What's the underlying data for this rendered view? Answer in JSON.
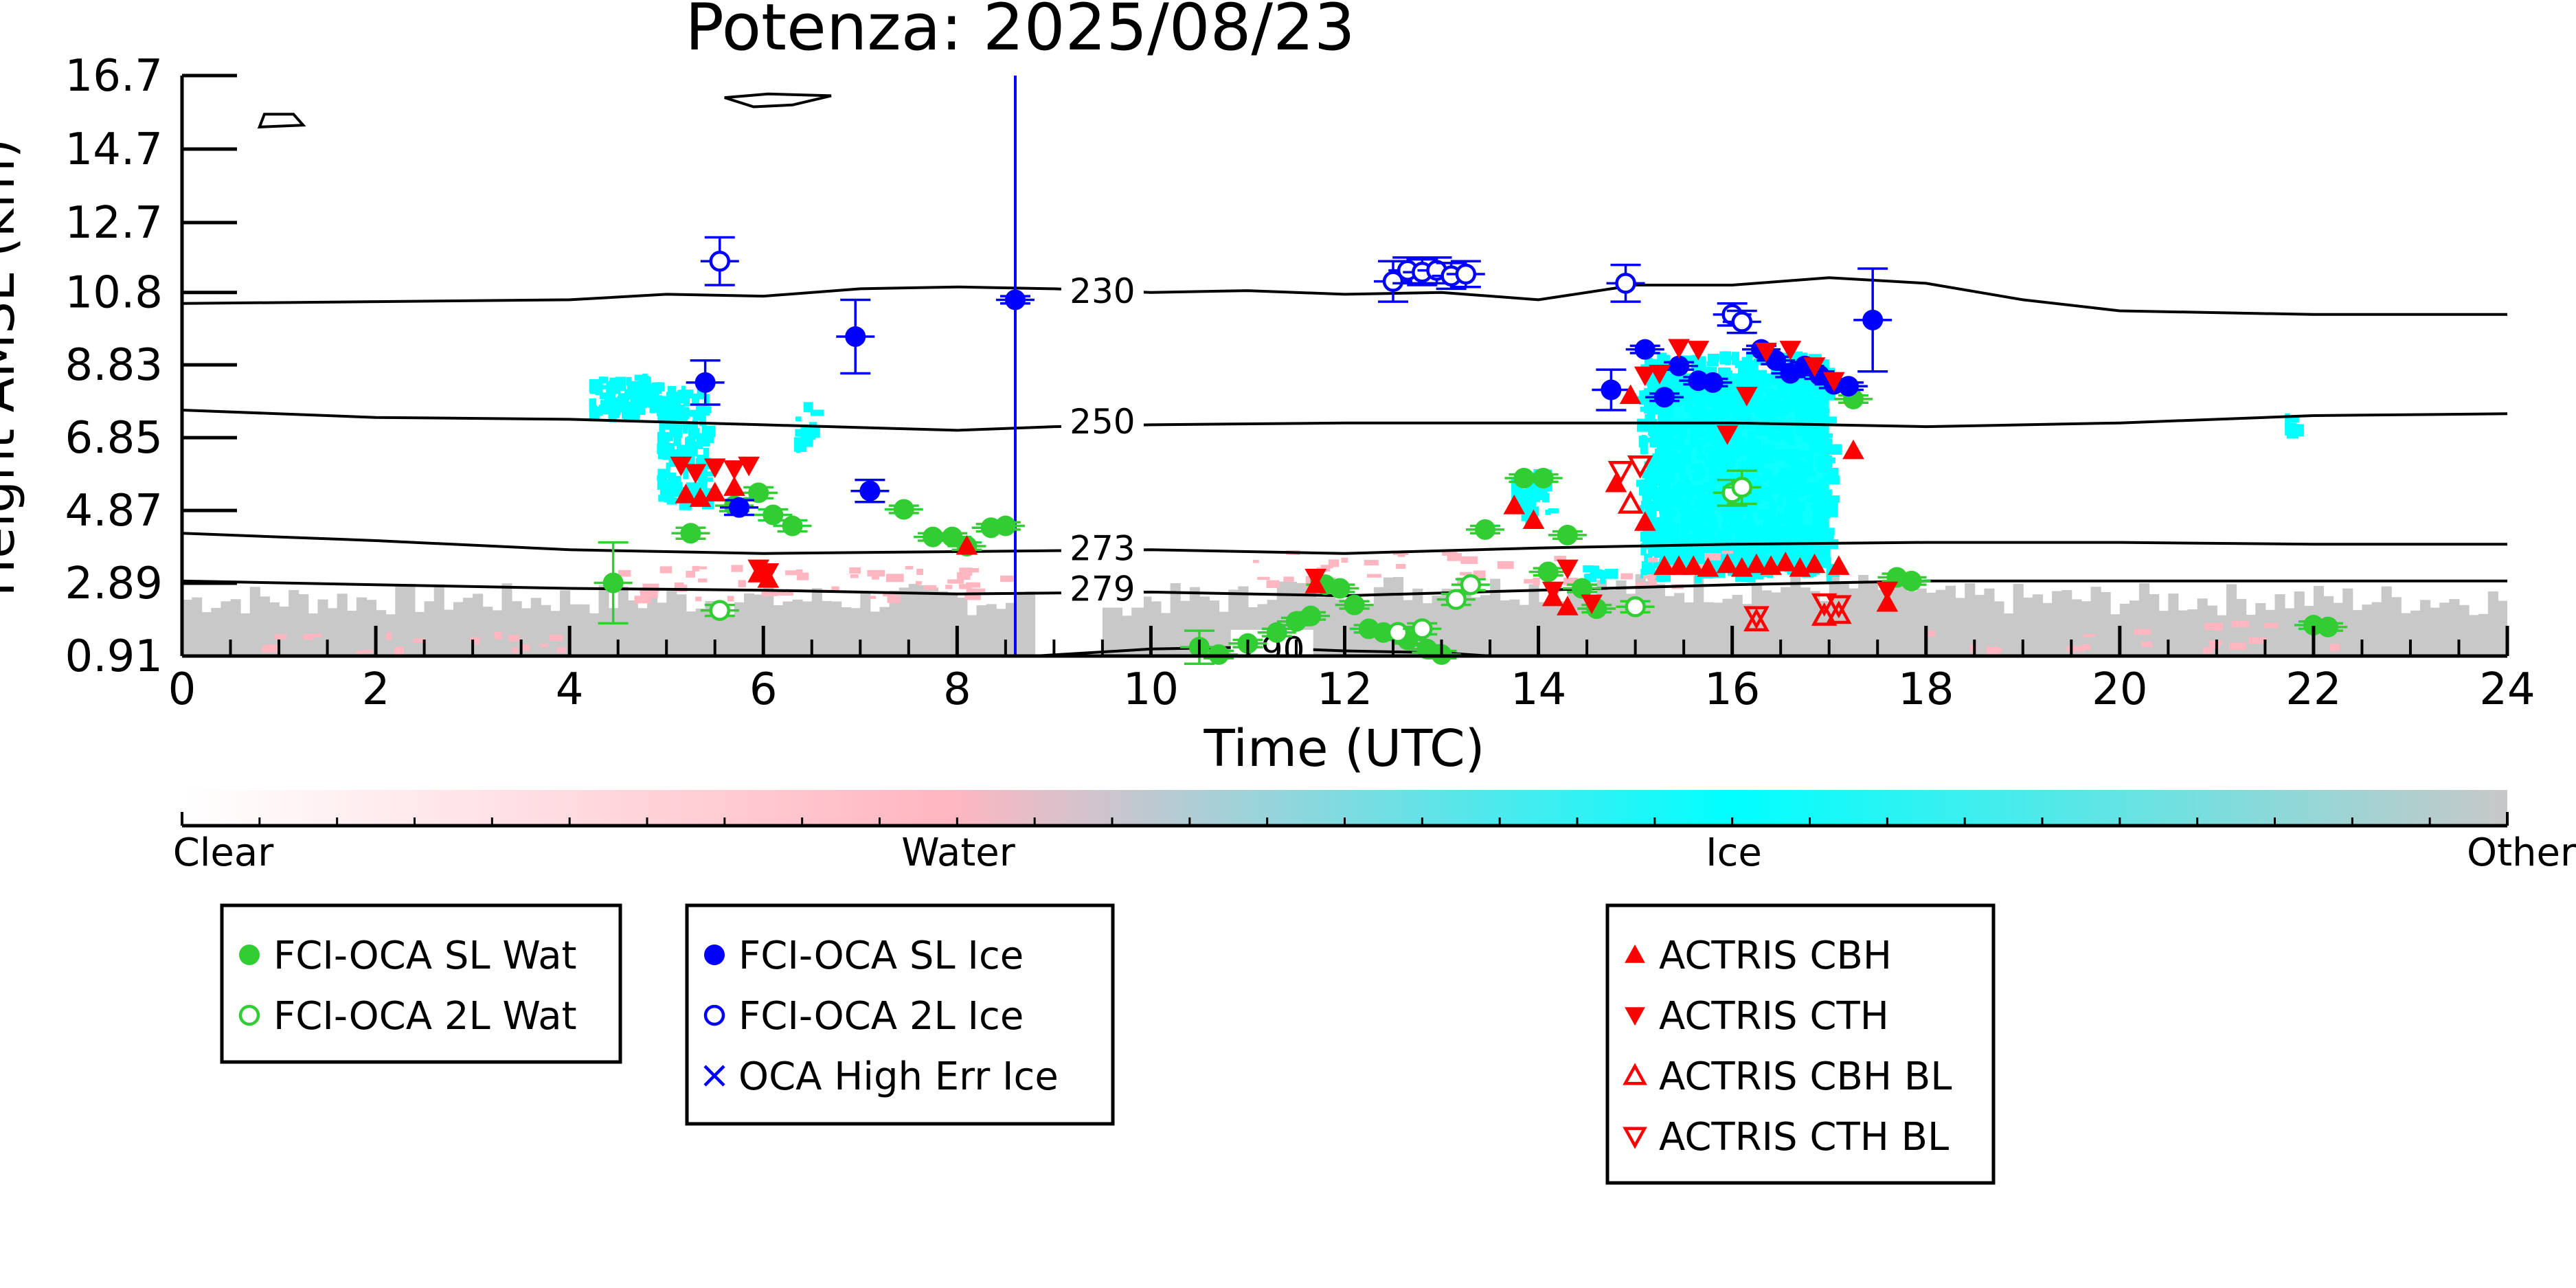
{
  "chart_data": {
    "type": "scatter",
    "title": "Potenza: 2025/08/23",
    "xlabel": "Time (UTC)",
    "ylabel": "Height AMSL (km)",
    "xlim": [
      0,
      24
    ],
    "ylim": [
      0.91,
      16.7
    ],
    "x_ticks": [
      "0",
      "2",
      "4",
      "6",
      "8",
      "10",
      "12",
      "14",
      "16",
      "18",
      "20",
      "22",
      "24"
    ],
    "y_ticks": [
      "0.91",
      "2.89",
      "4.87",
      "6.85",
      "8.83",
      "10.8",
      "12.7",
      "14.7",
      "16.7"
    ],
    "y_tick_values": [
      0.91,
      2.89,
      4.87,
      6.85,
      8.83,
      10.8,
      12.7,
      14.7,
      16.7
    ],
    "isotherms": [
      {
        "label": "230",
        "label_x": 9.5,
        "label_y": 10.85,
        "points": [
          [
            0,
            10.5
          ],
          [
            2,
            10.55
          ],
          [
            4,
            10.6
          ],
          [
            5,
            10.75
          ],
          [
            6,
            10.7
          ],
          [
            7,
            10.9
          ],
          [
            8,
            10.95
          ],
          [
            9,
            10.9
          ],
          [
            10,
            10.8
          ],
          [
            11,
            10.85
          ],
          [
            12,
            10.75
          ],
          [
            13,
            10.8
          ],
          [
            14,
            10.6
          ],
          [
            15,
            11.0
          ],
          [
            16,
            11.0
          ],
          [
            17,
            11.2
          ],
          [
            18,
            11.05
          ],
          [
            19,
            10.6
          ],
          [
            20,
            10.3
          ],
          [
            22,
            10.2
          ],
          [
            24,
            10.2
          ]
        ]
      },
      {
        "label": "250",
        "label_x": 9.5,
        "label_y": 7.3,
        "points": [
          [
            0,
            7.6
          ],
          [
            2,
            7.4
          ],
          [
            4,
            7.35
          ],
          [
            6,
            7.2
          ],
          [
            8,
            7.05
          ],
          [
            9,
            7.15
          ],
          [
            10,
            7.2
          ],
          [
            12,
            7.25
          ],
          [
            14,
            7.25
          ],
          [
            16,
            7.25
          ],
          [
            18,
            7.15
          ],
          [
            20,
            7.25
          ],
          [
            22,
            7.45
          ],
          [
            24,
            7.5
          ]
        ]
      },
      {
        "label": "273",
        "label_x": 9.5,
        "label_y": 3.85,
        "points": [
          [
            0,
            4.25
          ],
          [
            2,
            4.05
          ],
          [
            4,
            3.8
          ],
          [
            6,
            3.7
          ],
          [
            8,
            3.75
          ],
          [
            10,
            3.8
          ],
          [
            12,
            3.7
          ],
          [
            14,
            3.85
          ],
          [
            16,
            3.95
          ],
          [
            18,
            4.0
          ],
          [
            20,
            4.0
          ],
          [
            22,
            3.95
          ],
          [
            24,
            3.95
          ]
        ]
      },
      {
        "label": "279",
        "label_x": 9.5,
        "label_y": 2.75,
        "points": [
          [
            0,
            2.95
          ],
          [
            2,
            2.85
          ],
          [
            4,
            2.75
          ],
          [
            6,
            2.7
          ],
          [
            8,
            2.6
          ],
          [
            10,
            2.65
          ],
          [
            12,
            2.55
          ],
          [
            14,
            2.7
          ],
          [
            16,
            2.85
          ],
          [
            18,
            2.95
          ],
          [
            20,
            2.95
          ],
          [
            22,
            2.95
          ],
          [
            24,
            2.95
          ]
        ]
      },
      {
        "label": "290",
        "label_x": 11.25,
        "label_y": 1.1,
        "points": [
          [
            8.8,
            0.91
          ],
          [
            10,
            1.1
          ],
          [
            11,
            1.15
          ],
          [
            12,
            1.05
          ],
          [
            13,
            1.0
          ],
          [
            13.5,
            0.91
          ]
        ]
      }
    ],
    "contours": [
      {
        "points": [
          [
            0.85,
            15.65
          ],
          [
            1.15,
            15.65
          ],
          [
            1.25,
            15.35
          ],
          [
            0.8,
            15.3
          ],
          [
            0.85,
            15.65
          ]
        ]
      },
      {
        "points": [
          [
            5.6,
            16.1
          ],
          [
            6.05,
            16.2
          ],
          [
            6.7,
            16.15
          ],
          [
            6.3,
            15.9
          ],
          [
            5.9,
            15.85
          ],
          [
            5.6,
            16.1
          ]
        ]
      }
    ],
    "vertical_line": {
      "x": 8.6,
      "color": "#0000ff"
    },
    "colors": {
      "water_marker": "#32cd32",
      "ice_marker": "#0000ff",
      "actris_marker": "#ff0000",
      "background_other": "#c8c8c8",
      "ice_shading": "#00ffff",
      "water_shading": "#ffb6c1"
    },
    "series": [
      {
        "name": "FCI-OCA SL Wat",
        "marker": "circle-filled",
        "color": "#32cd32",
        "points": [
          [
            4.45,
            2.9,
            1.1
          ],
          [
            5.25,
            4.25,
            0.15
          ],
          [
            5.7,
            5.0,
            0.15
          ],
          [
            5.95,
            5.35,
            0.15
          ],
          [
            6.1,
            4.75,
            0.15
          ],
          [
            6.3,
            4.45,
            0.15
          ],
          [
            7.45,
            4.9,
            0.1
          ],
          [
            7.75,
            4.15,
            0.1
          ],
          [
            7.95,
            4.15,
            0.1
          ],
          [
            8.1,
            3.9,
            0.1
          ],
          [
            8.35,
            4.4,
            0.1
          ],
          [
            8.5,
            4.45,
            0.1
          ],
          [
            10.5,
            1.15,
            0.45
          ],
          [
            10.7,
            0.95,
            0.1
          ],
          [
            11.0,
            1.25,
            0.1
          ],
          [
            11.3,
            1.55,
            0.1
          ],
          [
            11.5,
            1.85,
            0.1
          ],
          [
            11.65,
            2.0,
            0.1
          ],
          [
            11.8,
            2.85,
            0.1
          ],
          [
            11.95,
            2.75,
            0.1
          ],
          [
            12.1,
            2.3,
            0.1
          ],
          [
            12.25,
            1.65,
            0.1
          ],
          [
            12.4,
            1.55,
            0.1
          ],
          [
            12.65,
            1.35,
            0.1
          ],
          [
            12.85,
            1.1,
            0.1
          ],
          [
            13.0,
            0.95,
            0.1
          ],
          [
            13.45,
            4.35,
            0.1
          ],
          [
            13.85,
            5.75,
            0.1
          ],
          [
            14.05,
            5.75,
            0.1
          ],
          [
            14.1,
            3.2,
            0.1
          ],
          [
            14.3,
            4.2,
            0.1
          ],
          [
            14.45,
            2.75,
            0.1
          ],
          [
            14.6,
            2.2,
            0.1
          ],
          [
            17.25,
            7.9,
            0.1
          ],
          [
            17.7,
            3.05,
            0.1
          ],
          [
            17.85,
            2.95,
            0.1
          ],
          [
            22.0,
            1.75,
            0.1
          ],
          [
            22.15,
            1.7,
            0.1
          ]
        ]
      },
      {
        "name": "FCI-OCA 2L Wat",
        "marker": "circle-open",
        "color": "#32cd32",
        "points": [
          [
            5.55,
            2.15,
            0.15
          ],
          [
            12.55,
            1.55,
            0.15
          ],
          [
            12.8,
            1.65,
            0.15
          ],
          [
            13.15,
            2.45,
            0.15
          ],
          [
            13.3,
            2.85,
            0.15
          ],
          [
            15.0,
            2.25,
            0.15
          ],
          [
            16.0,
            5.35,
            0.35
          ],
          [
            16.1,
            5.5,
            0.45
          ]
        ]
      },
      {
        "name": "FCI-OCA SL Ice",
        "marker": "circle-filled",
        "color": "#0000ff",
        "points": [
          [
            5.4,
            8.35,
            0.6
          ],
          [
            5.75,
            4.95,
            0.2
          ],
          [
            6.95,
            9.6,
            1.0
          ],
          [
            7.1,
            5.4,
            0.3
          ],
          [
            8.6,
            10.6,
            0.1
          ],
          [
            14.75,
            8.15,
            0.55
          ],
          [
            15.1,
            9.25,
            0.1
          ],
          [
            15.3,
            7.95,
            0.1
          ],
          [
            15.45,
            8.8,
            0.1
          ],
          [
            15.65,
            8.4,
            0.1
          ],
          [
            15.8,
            8.35,
            0.1
          ],
          [
            16.3,
            9.25,
            0.1
          ],
          [
            16.45,
            8.95,
            0.1
          ],
          [
            16.6,
            8.6,
            0.1
          ],
          [
            16.75,
            8.8,
            0.1
          ],
          [
            16.9,
            8.55,
            0.1
          ],
          [
            17.05,
            8.3,
            0.1
          ],
          [
            17.2,
            8.25,
            0.1
          ],
          [
            17.45,
            10.05,
            1.4
          ]
        ]
      },
      {
        "name": "FCI-OCA 2L Ice",
        "marker": "circle-open",
        "color": "#0000ff",
        "points": [
          [
            5.55,
            11.65,
            0.65
          ],
          [
            12.5,
            11.1,
            0.55
          ],
          [
            12.65,
            11.4,
            0.35
          ],
          [
            12.8,
            11.35,
            0.35
          ],
          [
            12.95,
            11.4,
            0.35
          ],
          [
            13.1,
            11.25,
            0.35
          ],
          [
            13.25,
            11.3,
            0.35
          ],
          [
            14.9,
            11.05,
            0.5
          ],
          [
            16.0,
            10.2,
            0.3
          ],
          [
            16.1,
            10.0,
            0.3
          ]
        ]
      },
      {
        "name": "OCA High Err Ice",
        "marker": "x",
        "color": "#0000ff",
        "points": []
      },
      {
        "name": "ACTRIS CBH",
        "marker": "triangle-up-filled",
        "color": "#ff0000",
        "points": [
          [
            5.2,
            5.3
          ],
          [
            5.35,
            5.2
          ],
          [
            5.5,
            5.35
          ],
          [
            5.7,
            5.5
          ],
          [
            5.95,
            3.15
          ],
          [
            6.05,
            3.0
          ],
          [
            8.1,
            3.9
          ],
          [
            11.7,
            2.85
          ],
          [
            13.75,
            5.0
          ],
          [
            13.95,
            4.6
          ],
          [
            14.15,
            2.5
          ],
          [
            14.3,
            2.25
          ],
          [
            14.8,
            5.6
          ],
          [
            14.95,
            8.0
          ],
          [
            15.1,
            4.55
          ],
          [
            15.3,
            3.35
          ],
          [
            15.45,
            3.35
          ],
          [
            15.6,
            3.35
          ],
          [
            15.75,
            3.3
          ],
          [
            15.95,
            3.4
          ],
          [
            16.1,
            3.3
          ],
          [
            16.25,
            3.4
          ],
          [
            16.4,
            3.35
          ],
          [
            16.55,
            3.45
          ],
          [
            16.7,
            3.3
          ],
          [
            16.85,
            3.4
          ],
          [
            17.1,
            3.35
          ],
          [
            17.25,
            6.5
          ],
          [
            17.6,
            2.35
          ]
        ]
      },
      {
        "name": "ACTRIS CTH",
        "marker": "triangle-down-filled",
        "color": "#ff0000",
        "points": [
          [
            5.15,
            6.1
          ],
          [
            5.3,
            5.9
          ],
          [
            5.5,
            6.05
          ],
          [
            5.7,
            6.0
          ],
          [
            5.85,
            6.1
          ],
          [
            5.95,
            3.3
          ],
          [
            6.05,
            3.2
          ],
          [
            11.7,
            3.05
          ],
          [
            14.15,
            2.7
          ],
          [
            14.3,
            3.3
          ],
          [
            14.55,
            2.35
          ],
          [
            15.1,
            8.55
          ],
          [
            15.25,
            8.6
          ],
          [
            15.45,
            9.3
          ],
          [
            15.65,
            9.25
          ],
          [
            15.95,
            6.95
          ],
          [
            16.15,
            8.0
          ],
          [
            16.35,
            9.2
          ],
          [
            16.6,
            9.25
          ],
          [
            16.85,
            8.8
          ],
          [
            17.05,
            8.4
          ],
          [
            17.6,
            2.7
          ]
        ]
      },
      {
        "name": "ACTRIS CBH BL",
        "marker": "triangle-up-open",
        "color": "#ff0000",
        "points": [
          [
            14.95,
            5.05
          ],
          [
            16.25,
            1.85
          ],
          [
            16.95,
            2.0
          ],
          [
            17.1,
            2.05
          ]
        ]
      },
      {
        "name": "ACTRIS CTH BL",
        "marker": "triangle-down-open",
        "color": "#ff0000",
        "points": [
          [
            14.85,
            5.95
          ],
          [
            15.05,
            6.1
          ],
          [
            16.25,
            2.0
          ],
          [
            16.95,
            2.35
          ],
          [
            17.1,
            2.3
          ]
        ]
      }
    ],
    "colorbar": {
      "labels": [
        "Clear",
        "Water",
        "Ice",
        "Other"
      ],
      "stops": [
        "#ffffff",
        "#ffb6c1",
        "#00ffff",
        "#c8c8c8"
      ]
    },
    "legend_groups": [
      {
        "entries": [
          {
            "label": "FCI-OCA SL Wat",
            "marker": "circle-filled",
            "color": "#32cd32"
          },
          {
            "label": "FCI-OCA 2L Wat",
            "marker": "circle-open",
            "color": "#32cd32"
          }
        ]
      },
      {
        "entries": [
          {
            "label": "FCI-OCA SL Ice",
            "marker": "circle-filled",
            "color": "#0000ff"
          },
          {
            "label": "FCI-OCA 2L Ice",
            "marker": "circle-open",
            "color": "#0000ff"
          },
          {
            "label": "OCA High Err Ice",
            "marker": "x",
            "color": "#0000ff"
          }
        ]
      },
      {
        "entries": [
          {
            "label": "ACTRIS CBH",
            "marker": "triangle-up-filled",
            "color": "#ff0000"
          },
          {
            "label": "ACTRIS CTH",
            "marker": "triangle-down-filled",
            "color": "#ff0000"
          },
          {
            "label": "ACTRIS CBH BL",
            "marker": "triangle-up-open",
            "color": "#ff0000"
          },
          {
            "label": "ACTRIS CTH BL",
            "marker": "triangle-down-open",
            "color": "#ff0000"
          }
        ]
      }
    ]
  }
}
